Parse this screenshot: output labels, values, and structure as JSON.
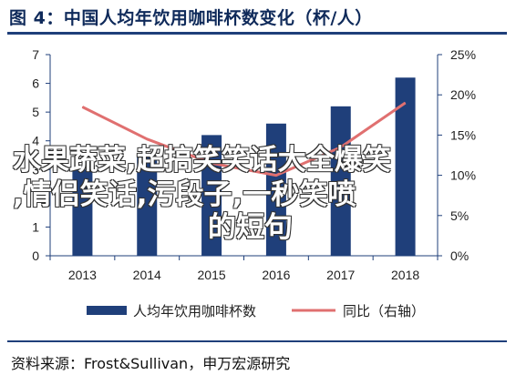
{
  "title": "图 4：中国人均年饮用咖啡杯数变化（杯/人）",
  "source": "资料来源：Frost&Sullivan，申万宏源研究",
  "overlay": {
    "line1": "水果蔬菜,超搞笑笑话大全爆笑",
    "line2": ",情侣笑话,污段子,一秒笑喷",
    "line3": "的短句"
  },
  "colors": {
    "bar": "#1f3f7a",
    "line": "#e07070",
    "title": "#0f2a5a"
  },
  "chart_data": {
    "type": "bar",
    "categories": [
      "2013",
      "2014",
      "2015",
      "2016",
      "2017",
      "2018"
    ],
    "series": [
      {
        "name": "人均年饮用咖啡杯数",
        "type": "bar",
        "axis": "left",
        "values": [
          3.0,
          3.5,
          4.2,
          4.6,
          5.2,
          6.2
        ]
      },
      {
        "name": "同比（右轴）",
        "type": "line",
        "axis": "right",
        "values": [
          18.5,
          14.5,
          11.5,
          10.0,
          13.5,
          19.0
        ]
      }
    ],
    "y_left": {
      "min": 0,
      "max": 7,
      "ticks": [
        "0",
        "1",
        "2",
        "3",
        "4",
        "5",
        "6",
        "7"
      ]
    },
    "y_right": {
      "min": 0,
      "max": 25,
      "ticks": [
        "0%",
        "5%",
        "10%",
        "15%",
        "20%",
        "25%"
      ]
    },
    "legend": {
      "position": "bottom"
    },
    "grid": false
  }
}
